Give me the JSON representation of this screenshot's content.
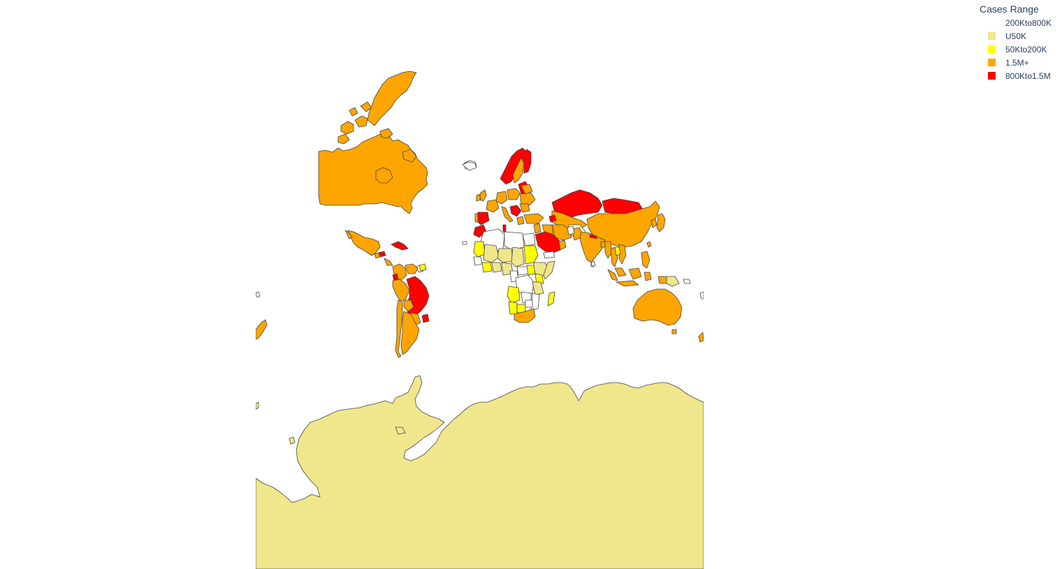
{
  "legend": {
    "title": "Cases Range",
    "items": [
      {
        "label": "200Kto800K",
        "color": "#ffffff"
      },
      {
        "label": "U50K",
        "color": "#f0e68c"
      },
      {
        "label": "50Kto200K",
        "color": "#ffff00"
      },
      {
        "label": "1.5M+",
        "color": "#ffa500"
      },
      {
        "label": "800Kto1.5M",
        "color": "#ff0000"
      }
    ]
  },
  "colors": {
    "border": "#444444",
    "background": "#ffffff"
  }
}
